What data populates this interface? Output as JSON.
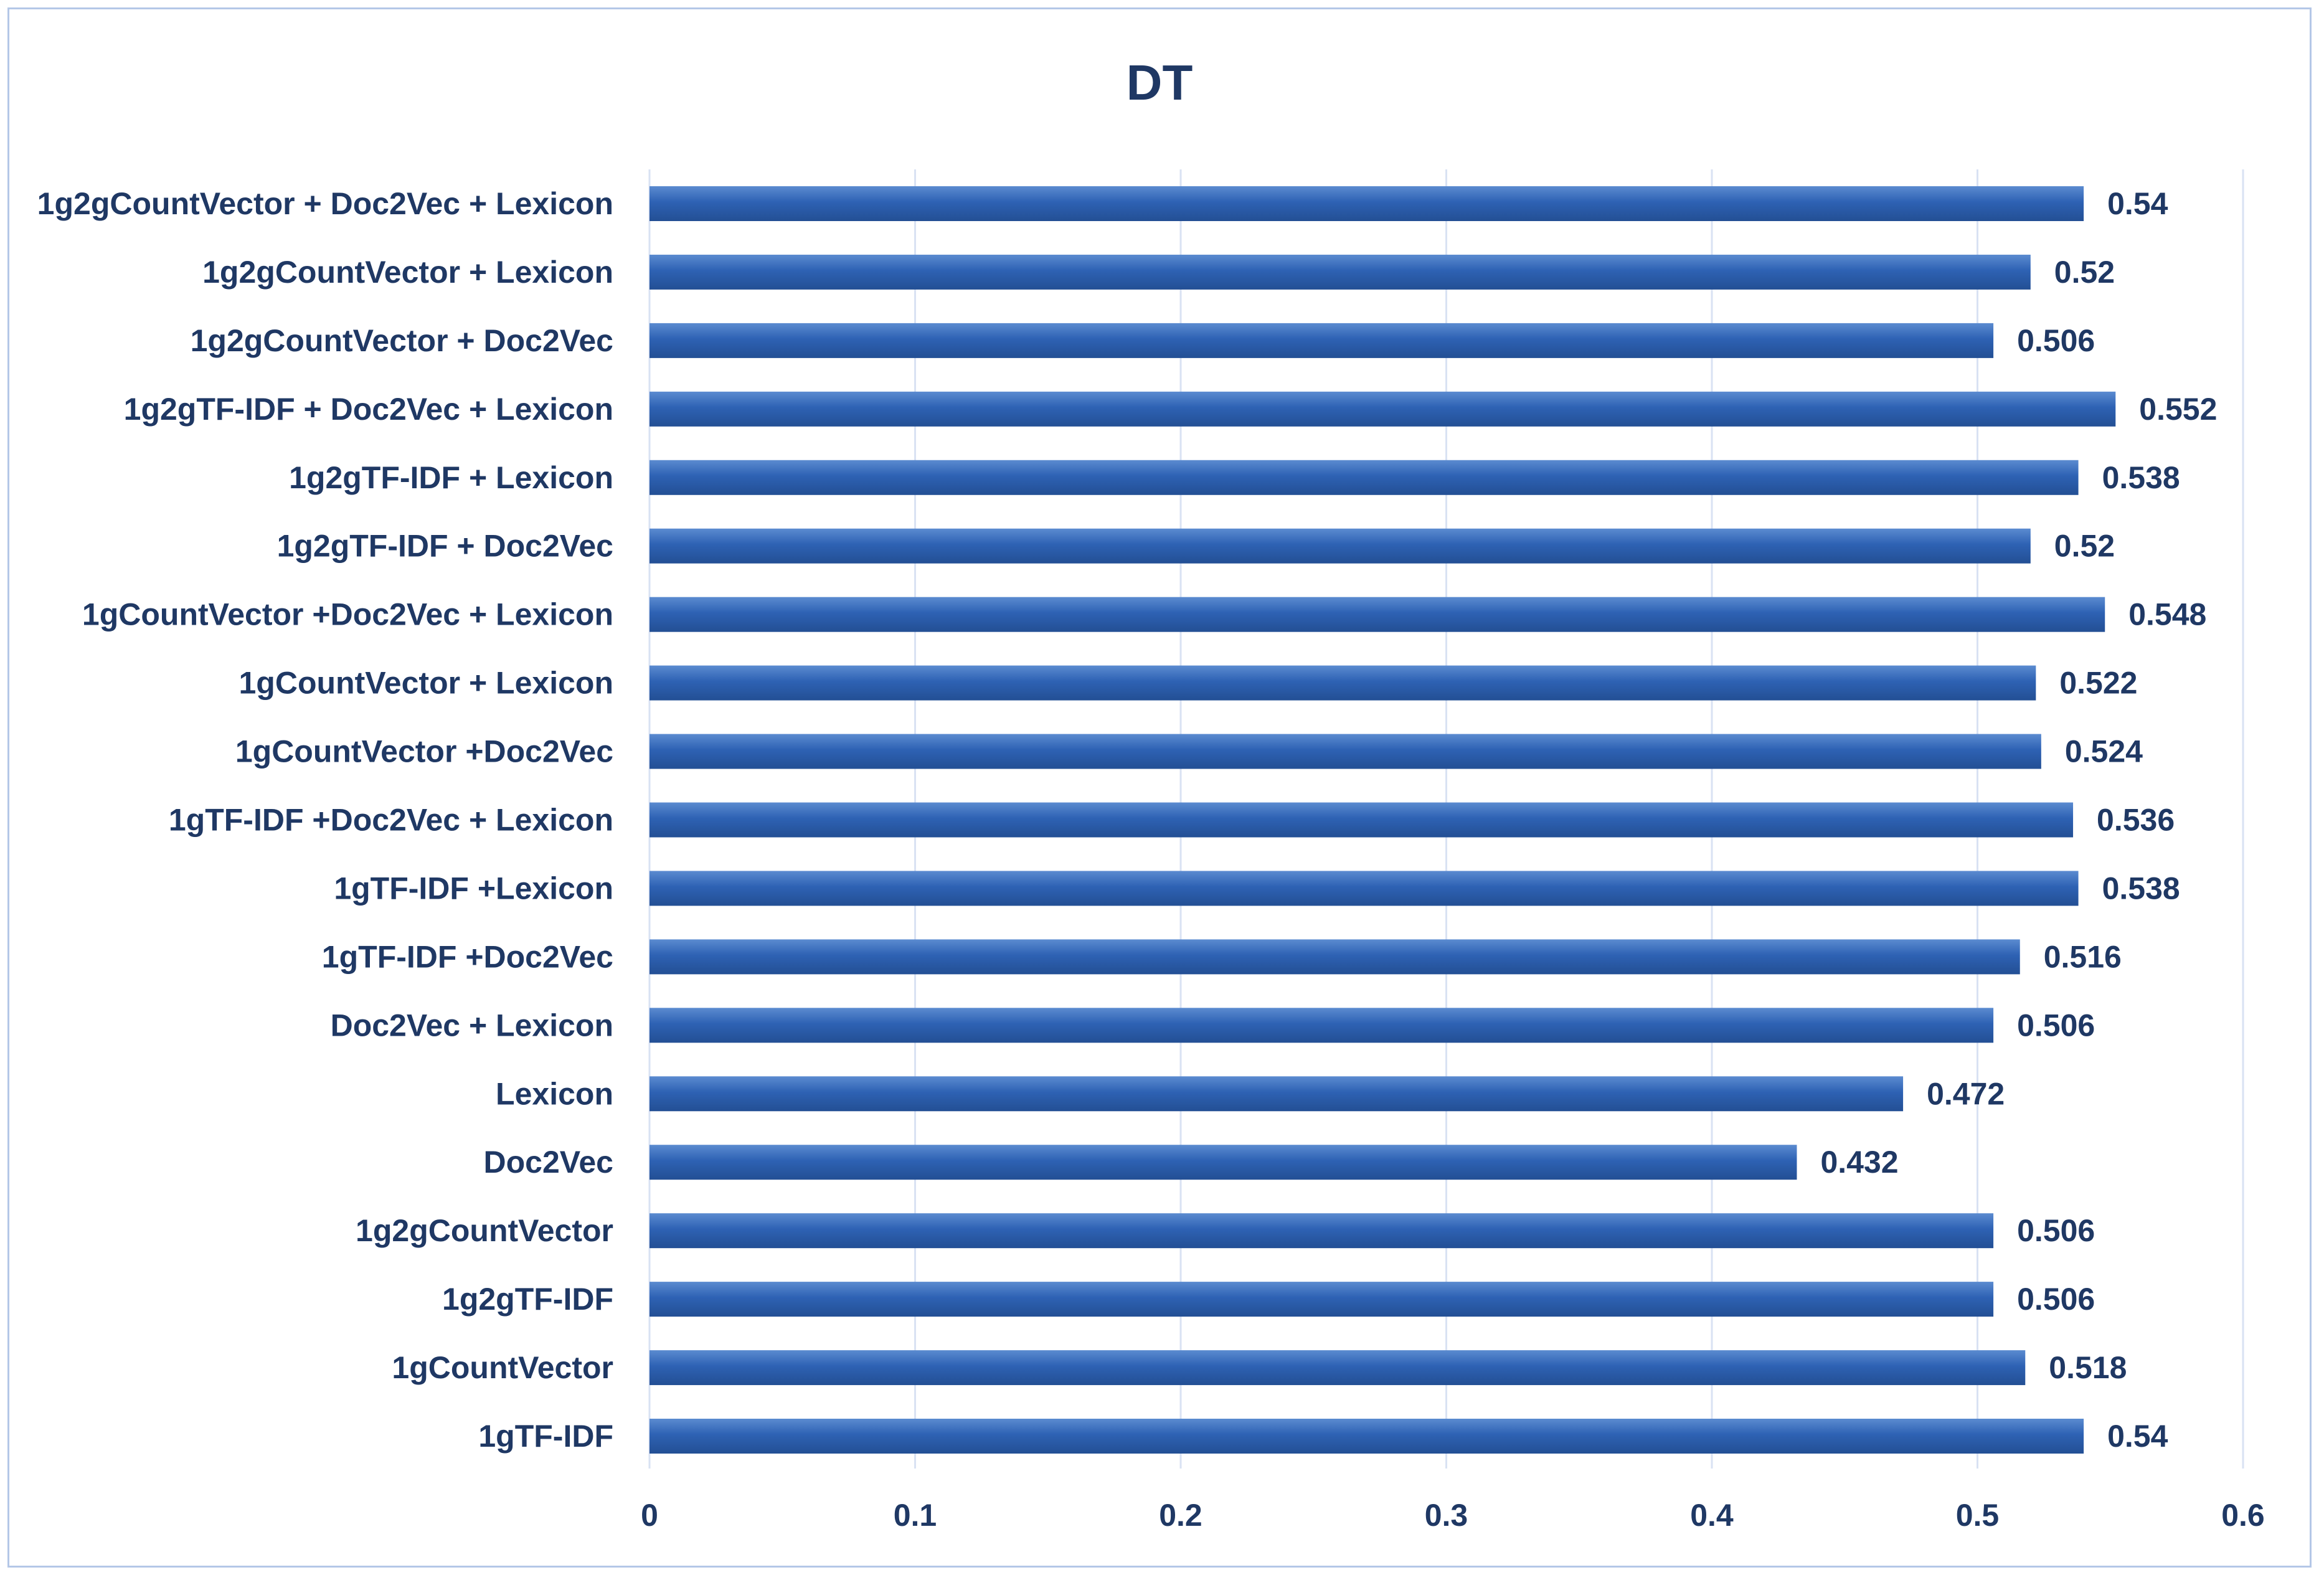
{
  "chart_data": {
    "type": "bar",
    "orientation": "horizontal",
    "title": "DT",
    "categories": [
      "1g2gCountVector +  Doc2Vec + Lexicon",
      "1g2gCountVector + Lexicon",
      "1g2gCountVector + Doc2Vec",
      "1g2gTF-IDF + Doc2Vec + Lexicon",
      "1g2gTF-IDF + Lexicon",
      "1g2gTF-IDF + Doc2Vec",
      "1gCountVector  +Doc2Vec + Lexicon",
      "1gCountVector + Lexicon",
      "1gCountVector +Doc2Vec",
      "1gTF-IDF +Doc2Vec + Lexicon",
      "1gTF-IDF +Lexicon",
      "1gTF-IDF +Doc2Vec",
      "Doc2Vec + Lexicon",
      "Lexicon",
      "Doc2Vec",
      "1g2gCountVector",
      "1g2gTF-IDF",
      "1gCountVector",
      "1gTF-IDF"
    ],
    "values": [
      0.54,
      0.52,
      0.506,
      0.552,
      0.538,
      0.52,
      0.548,
      0.522,
      0.524,
      0.536,
      0.538,
      0.516,
      0.506,
      0.472,
      0.432,
      0.506,
      0.506,
      0.518,
      0.54
    ],
    "value_labels": [
      "0.54",
      "0.52",
      "0.506",
      "0.552",
      "0.538",
      "0.52",
      "0.548",
      "0.522",
      "0.524",
      "0.536",
      "0.538",
      "0.516",
      "0.506",
      "0.472",
      "0.432",
      "0.506",
      "0.506",
      "0.518",
      "0.54"
    ],
    "xlim": [
      0,
      0.6
    ],
    "xticks": [
      0,
      0.1,
      0.2,
      0.3,
      0.4,
      0.5,
      0.6
    ],
    "xtick_labels": [
      "0",
      "0.1",
      "0.2",
      "0.3",
      "0.4",
      "0.5",
      "0.6"
    ],
    "grid": true,
    "legend": "none",
    "colors": {
      "bar_top": "#5b8bd0",
      "bar_mid": "#2e62b4",
      "bar_bottom": "#234f94",
      "text": "#1f3864",
      "grid": "#d9e2f3",
      "border": "#b4c7e7"
    }
  }
}
